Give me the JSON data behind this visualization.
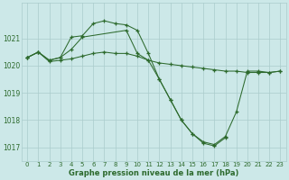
{
  "line1": {
    "x": [
      0,
      1,
      2,
      3,
      4,
      5,
      9,
      10,
      11,
      12,
      13,
      14,
      15,
      16,
      17,
      18,
      19,
      20,
      21,
      22,
      23
    ],
    "y": [
      1020.3,
      1020.5,
      1020.2,
      1020.3,
      1020.6,
      1021.05,
      1021.3,
      1020.45,
      1020.2,
      1019.5,
      1018.75,
      1018.0,
      1017.5,
      1017.2,
      1017.1,
      1017.4,
      1018.3,
      1019.8,
      1019.8,
      1019.75,
      1019.8
    ]
  },
  "line2": {
    "x": [
      0,
      1,
      2,
      3,
      4,
      5,
      6,
      7,
      8,
      9,
      10,
      11,
      12,
      13,
      14,
      15,
      16,
      17,
      18
    ],
    "y": [
      1020.3,
      1020.5,
      1020.2,
      1020.3,
      1021.05,
      1021.1,
      1021.55,
      1021.65,
      1021.55,
      1021.5,
      1021.3,
      1020.45,
      1019.5,
      1018.75,
      1018.0,
      1017.5,
      1017.15,
      1017.05,
      1017.35
    ]
  },
  "line3": {
    "x": [
      0,
      1,
      2,
      3,
      4,
      5,
      6,
      7,
      8,
      9,
      10,
      11,
      12,
      13,
      14,
      15,
      16,
      17,
      18,
      19,
      20,
      21,
      22,
      23
    ],
    "y": [
      1020.3,
      1020.5,
      1020.15,
      1020.2,
      1020.25,
      1020.35,
      1020.45,
      1020.5,
      1020.45,
      1020.45,
      1020.35,
      1020.2,
      1020.1,
      1020.05,
      1020.0,
      1019.95,
      1019.9,
      1019.85,
      1019.8,
      1019.8,
      1019.75,
      1019.75,
      1019.75,
      1019.8
    ]
  },
  "line_color": "#2d6a2d",
  "bg_color": "#cce8e8",
  "grid_color": "#aacccc",
  "axis_color": "#2d6a2d",
  "ylabel_values": [
    1017,
    1018,
    1019,
    1020,
    1021
  ],
  "xlabel_values": [
    0,
    1,
    2,
    3,
    4,
    5,
    6,
    7,
    8,
    9,
    10,
    11,
    12,
    13,
    14,
    15,
    16,
    17,
    18,
    19,
    20,
    21,
    22,
    23
  ],
  "ylim": [
    1016.5,
    1022.3
  ],
  "xlim": [
    -0.5,
    23.5
  ],
  "xlabel": "Graphe pression niveau de la mer (hPa)"
}
